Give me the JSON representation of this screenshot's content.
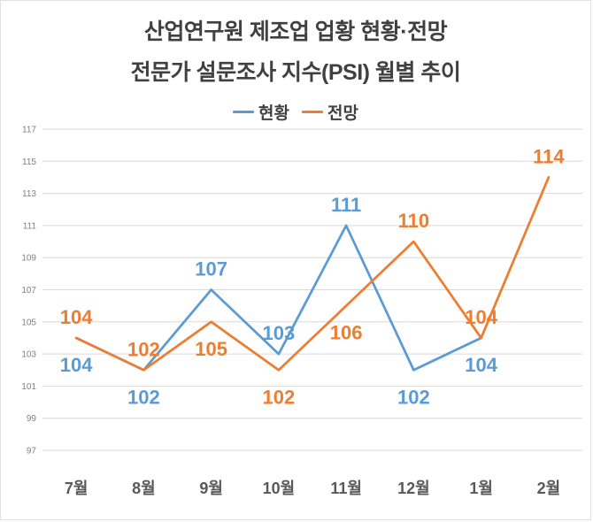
{
  "title": {
    "line1": "산업연구원 제조업 업황 현황·전망",
    "line2": "전문가 설문조사 지수(PSI) 월별 추이"
  },
  "legend": [
    {
      "label": "현황",
      "color": "#5B9BD5"
    },
    {
      "label": "전망",
      "color": "#ED7D31"
    }
  ],
  "chart_data": {
    "type": "line",
    "title": "산업연구원 제조업 업황 현황·전망 전문가 설문조사 지수(PSI) 월별 추이",
    "categories": [
      "7월",
      "8월",
      "9월",
      "10월",
      "11월",
      "12월",
      "1월",
      "2월"
    ],
    "series": [
      {
        "name": "현황",
        "color": "#5B9BD5",
        "values": [
          104,
          102,
          107,
          103,
          111,
          102,
          104,
          null
        ],
        "label_positions": [
          "below",
          "below",
          "above",
          "above",
          "above",
          "below",
          "below",
          null
        ]
      },
      {
        "name": "전망",
        "color": "#ED7D31",
        "values": [
          104,
          102,
          105,
          102,
          106,
          110,
          104,
          114
        ],
        "label_positions": [
          "above",
          "above",
          "below",
          "below",
          "below",
          "above",
          "above",
          "above"
        ]
      }
    ],
    "ylim": [
      97,
      117
    ],
    "yticks": [
      97,
      99,
      101,
      103,
      105,
      107,
      109,
      111,
      113,
      115,
      117
    ],
    "grid": true,
    "legend_position": "top",
    "xlabel": "",
    "ylabel": "",
    "colors": {
      "grid": "#D9D9D9",
      "ytick_text": "#808080",
      "xtick_text": "#595959",
      "title_text": "#404040"
    }
  }
}
